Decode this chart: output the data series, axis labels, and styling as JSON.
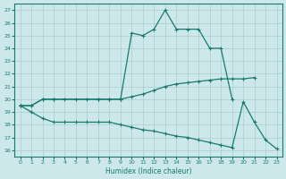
{
  "xlabel": "Humidex (Indice chaleur)",
  "line_color": "#1a7a6e",
  "bg_color": "#cce8ea",
  "grid_color": "#aacccc",
  "ylim": [
    15.5,
    27.5
  ],
  "xlim": [
    -0.5,
    23.5
  ],
  "yticks": [
    16,
    17,
    18,
    19,
    20,
    21,
    22,
    23,
    24,
    25,
    26,
    27
  ],
  "xticks": [
    0,
    1,
    2,
    3,
    4,
    5,
    6,
    7,
    8,
    9,
    10,
    11,
    12,
    13,
    14,
    15,
    16,
    17,
    18,
    19,
    20,
    21,
    22,
    23
  ],
  "line1_x": [
    0,
    1,
    2,
    3,
    7,
    8,
    9,
    10,
    11,
    12,
    13,
    14,
    15,
    16,
    17,
    18,
    19
  ],
  "line1_y": [
    19.5,
    19.5,
    20.0,
    20.0,
    20.0,
    20.0,
    20.0,
    25.2,
    25.0,
    25.5,
    27.0,
    25.5,
    25.5,
    25.5,
    24.0,
    24.0,
    20.0
  ],
  "line2_x": [
    0,
    1,
    2,
    3,
    4,
    5,
    6,
    7,
    8,
    9,
    10,
    11,
    12,
    13,
    14,
    15,
    16,
    17,
    18,
    19,
    20,
    21
  ],
  "line2_y": [
    19.5,
    19.5,
    20.0,
    20.0,
    20.0,
    20.0,
    20.0,
    20.0,
    20.0,
    20.0,
    20.2,
    20.4,
    20.7,
    21.0,
    21.2,
    21.3,
    21.4,
    21.5,
    21.6,
    21.6,
    21.6,
    21.7
  ],
  "line3_x": [
    0,
    1,
    2,
    3,
    4,
    5,
    6,
    7,
    8,
    9,
    10,
    11,
    12,
    13,
    14,
    15,
    16,
    17,
    18,
    19,
    20,
    21,
    22,
    23
  ],
  "line3_y": [
    19.5,
    19.0,
    18.5,
    18.2,
    18.2,
    18.2,
    18.2,
    18.2,
    18.2,
    18.0,
    17.8,
    17.6,
    17.5,
    17.3,
    17.1,
    17.0,
    16.8,
    16.6,
    16.4,
    16.2,
    19.8,
    18.2,
    16.8,
    16.1
  ]
}
